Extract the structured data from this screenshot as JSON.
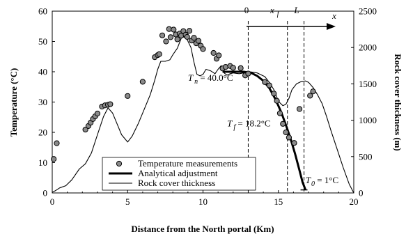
{
  "chart_data": {
    "type": "scatter",
    "xlabel": "Distance from the North portal (Km)",
    "ylabel_left": "Temperature (°C)",
    "ylabel_right": "Rock cover thickness (m)",
    "xlim": [
      0,
      20
    ],
    "ylim_left": [
      0,
      60
    ],
    "ylim_right": [
      0,
      2500
    ],
    "x_ticks": [
      "0",
      "5",
      "10",
      "15",
      "20"
    ],
    "y_left_ticks": [
      "0",
      "10",
      "20",
      "30",
      "40",
      "50",
      "60"
    ],
    "y_right_ticks": [
      "0",
      "500",
      "1000",
      "1500",
      "2000",
      "2500"
    ],
    "grid": false,
    "legend_position": "bottom-center",
    "legend": {
      "measurements": "Temperature measurements",
      "analytical": "Analytical adjustment",
      "rock": "Rock cover thickness"
    },
    "series": [
      {
        "name": "Temperature measurements",
        "kind": "scatter",
        "x": [
          0.1,
          0.3,
          2.2,
          2.4,
          2.55,
          2.7,
          2.85,
          3.0,
          3.3,
          3.5,
          3.7,
          3.85,
          5.0,
          6.0,
          6.8,
          7.0,
          7.1,
          7.3,
          7.55,
          7.75,
          7.85,
          8.05,
          8.2,
          8.3,
          8.45,
          8.55,
          8.7,
          8.85,
          8.95,
          9.1,
          9.25,
          9.4,
          9.55,
          9.7,
          9.85,
          10.0,
          10.7,
          10.9,
          11.05,
          11.3,
          11.5,
          11.8,
          12.0,
          12.5,
          12.8,
          13.0,
          14.1,
          14.4,
          14.7,
          14.9,
          15.1,
          15.3,
          15.5,
          15.7,
          16.05,
          16.4,
          17.1,
          17.3
        ],
        "y": [
          11.2,
          16.4,
          20.9,
          22.1,
          23.2,
          24.4,
          25.3,
          26.2,
          28.5,
          28.9,
          29.1,
          29.3,
          32.0,
          36.7,
          44.8,
          45.5,
          45.8,
          52.0,
          50.0,
          54.1,
          51.4,
          53.9,
          52.3,
          50.7,
          52.6,
          51.9,
          53.4,
          52.2,
          51.5,
          53.5,
          50.3,
          51.2,
          49.4,
          50.2,
          48.6,
          47.5,
          46.2,
          44.3,
          45.4,
          41.1,
          41.6,
          41.9,
          41.3,
          41.2,
          38.8,
          39.4,
          36.6,
          35.5,
          32.8,
          30.4,
          26.3,
          22.8,
          20.0,
          18.3,
          16.5,
          27.7,
          32.1,
          33.5
        ]
      },
      {
        "name": "Analytical adjustment",
        "kind": "line",
        "x": [
          11.3,
          12.0,
          12.7,
          13.2,
          13.6,
          14.0,
          14.4,
          14.8,
          15.2,
          15.5,
          15.8,
          16.1,
          16.4,
          16.6,
          16.8
        ],
        "y": [
          40.0,
          40.0,
          40.0,
          39.6,
          38.6,
          37.0,
          34.6,
          31.0,
          26.5,
          22.4,
          18.0,
          13.0,
          7.4,
          3.6,
          1.0
        ]
      },
      {
        "name": "Rock cover thickness",
        "kind": "line",
        "axis": "right",
        "x": [
          0,
          0.2,
          0.5,
          0.9,
          1.3,
          1.8,
          2.2,
          2.6,
          3.0,
          3.4,
          3.7,
          4.0,
          4.3,
          4.6,
          5.0,
          5.3,
          5.7,
          6.1,
          6.5,
          6.8,
          7.0,
          7.2,
          7.5,
          7.8,
          8.0,
          8.3,
          8.6,
          8.9,
          9.2,
          9.4,
          9.6,
          9.8,
          10.0,
          10.2,
          10.5,
          10.8,
          11.0,
          11.2,
          11.4,
          11.6,
          11.8,
          12.0,
          12.2,
          12.4,
          12.7,
          13.0,
          13.3,
          13.6,
          13.9,
          14.1,
          14.4,
          14.7,
          15.0,
          15.3,
          15.5,
          15.7,
          15.9,
          16.2,
          16.5,
          16.8,
          17.0,
          17.3,
          17.6,
          17.9,
          18.2,
          18.5,
          18.9,
          19.3,
          19.7,
          20.0
        ],
        "y": [
          10,
          30,
          70,
          100,
          180,
          330,
          400,
          550,
          800,
          1050,
          1170,
          1100,
          950,
          800,
          700,
          780,
          950,
          1150,
          1350,
          1550,
          1700,
          1810,
          1810,
          1830,
          1900,
          1990,
          2150,
          2130,
          2000,
          1800,
          1630,
          1610,
          1630,
          1700,
          1680,
          1640,
          1700,
          1750,
          1650,
          1620,
          1640,
          1650,
          1645,
          1640,
          1650,
          1670,
          1660,
          1650,
          1620,
          1600,
          1520,
          1420,
          1260,
          1200,
          1220,
          1300,
          1420,
          1500,
          1530,
          1540,
          1520,
          1450,
          1350,
          1230,
          1050,
          850,
          600,
          350,
          120,
          0
        ]
      }
    ],
    "annotations": {
      "tn": {
        "sym": "T",
        "sub": "n",
        "rest": " = 40.0°C",
        "x": 9.0,
        "y": 37.0
      },
      "tf": {
        "sym": "T",
        "sub": "f",
        "rest": " = 18.2°C",
        "x": 11.6,
        "y": 22.0
      },
      "t0": {
        "sym": "T",
        "sub": "0",
        "rest": " = 1°C",
        "x": 16.8,
        "y": 3.2
      },
      "top_zero": "0",
      "top_xf_sym": "x",
      "top_xf_sub": "f",
      "top_l": "L",
      "top_x": "x",
      "ref_x0": 13.0,
      "ref_xf": 15.6,
      "ref_L": 16.7
    }
  }
}
